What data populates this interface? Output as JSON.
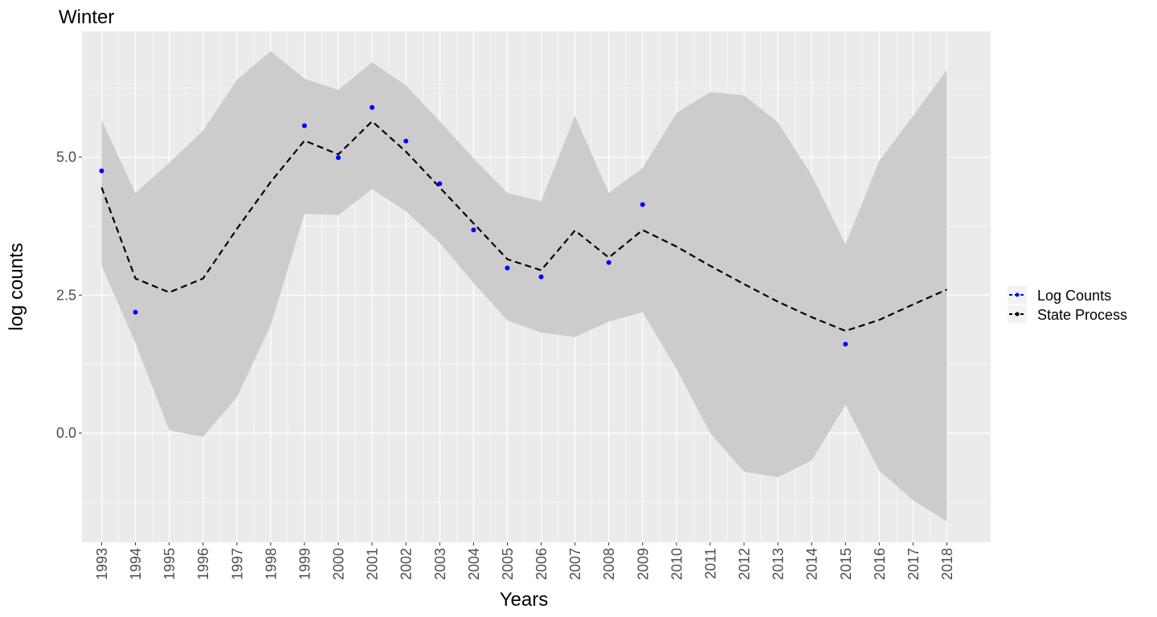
{
  "chart_data": {
    "type": "line",
    "title": "Winter",
    "xlabel": "Years",
    "ylabel": "log counts",
    "x_categories": [
      "1993",
      "1994",
      "1995",
      "1996",
      "1997",
      "1998",
      "1999",
      "2000",
      "2001",
      "2002",
      "2003",
      "2004",
      "2005",
      "2006",
      "2007",
      "2008",
      "2009",
      "2010",
      "2011",
      "2012",
      "2013",
      "2014",
      "2015",
      "2016",
      "2017",
      "2018"
    ],
    "ylim": [
      -1.98,
      7.28
    ],
    "y_ticks": [
      0,
      2.5,
      5
    ],
    "y_tick_labels": [
      "0.0",
      "2.5",
      "5.0"
    ],
    "grid": true,
    "legend_position": "right",
    "series": [
      {
        "name": "Log Counts",
        "style": "points",
        "color": "#0000ff",
        "points": [
          {
            "x": "1993",
            "y": 4.75
          },
          {
            "x": "1994",
            "y": 2.19
          },
          {
            "x": "1999",
            "y": 5.57
          },
          {
            "x": "2000",
            "y": 4.99
          },
          {
            "x": "2001",
            "y": 5.9
          },
          {
            "x": "2002",
            "y": 5.29
          },
          {
            "x": "2003",
            "y": 4.52
          },
          {
            "x": "2004",
            "y": 3.68
          },
          {
            "x": "2005",
            "y": 2.99
          },
          {
            "x": "2006",
            "y": 2.83
          },
          {
            "x": "2007",
            "y": null
          },
          {
            "x": "2008",
            "y": 3.09
          },
          {
            "x": "2009",
            "y": 4.14
          },
          {
            "x": "2015",
            "y": 1.61
          }
        ]
      },
      {
        "name": "State Process",
        "style": "dashed-line",
        "color": "#000000",
        "values": [
          4.45,
          2.8,
          2.55,
          2.8,
          3.7,
          4.55,
          5.3,
          5.05,
          5.65,
          5.1,
          4.45,
          3.8,
          3.15,
          2.95,
          3.67,
          3.18,
          3.68,
          3.38,
          3.03,
          2.7,
          2.38,
          2.1,
          1.85,
          2.05,
          2.33,
          2.6
        ]
      }
    ],
    "confidence_band": {
      "color": "#cccccc",
      "upper": [
        5.67,
        4.35,
        4.9,
        5.48,
        6.4,
        6.92,
        6.42,
        6.22,
        6.72,
        6.3,
        5.65,
        4.98,
        4.35,
        4.2,
        5.75,
        4.35,
        4.8,
        5.8,
        6.18,
        6.12,
        5.63,
        4.67,
        3.42,
        4.93,
        5.75,
        6.58
      ],
      "lower": [
        3.03,
        1.63,
        0.05,
        -0.07,
        0.65,
        1.95,
        3.97,
        3.95,
        4.42,
        4.02,
        3.45,
        2.72,
        2.04,
        1.82,
        1.74,
        2.02,
        2.19,
        1.16,
        0.0,
        -0.7,
        -0.8,
        -0.5,
        0.51,
        -0.68,
        -1.22,
        -1.6
      ]
    }
  }
}
